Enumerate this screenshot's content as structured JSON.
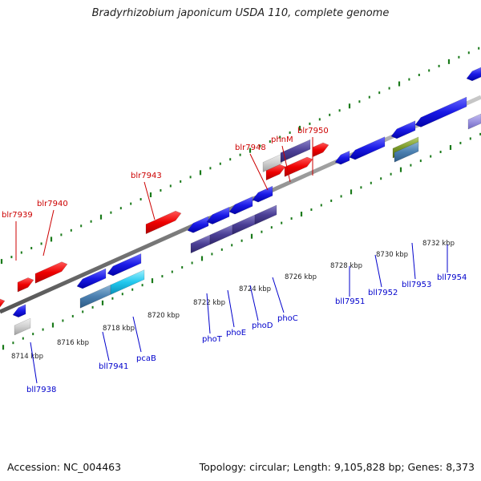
{
  "title": "Bradyrhizobium japonicum USDA 110, complete genome",
  "footer": {
    "accession": "Accession: NC_004463",
    "summary": "Topology: circular; Length: 9,105,828 bp; Genes: 8,373"
  },
  "colors": {
    "forward_label": "#cc0000",
    "reverse_label": "#0000cc",
    "scale_text": "#222222",
    "tick": "#1a7a1a",
    "backbone": "#8a8a8a"
  },
  "scale_labels": [
    "8714 kbp",
    "8716 kbp",
    "8718 kbp",
    "8720 kbp",
    "8722 kbp",
    "8724 kbp",
    "8726 kbp",
    "8728 kbp",
    "8730 kbp",
    "8732 kbp"
  ],
  "forward_gene_labels": [
    "blr7939",
    "blr7940",
    "blr7943",
    "blr7948",
    "phnM",
    "blr7950"
  ],
  "reverse_gene_labels": [
    "bll7938",
    "bll7941",
    "pcaB",
    "phoT",
    "phoE",
    "phoD",
    "phoC",
    "bll7951",
    "bll7952",
    "bll7953",
    "bll7954"
  ]
}
